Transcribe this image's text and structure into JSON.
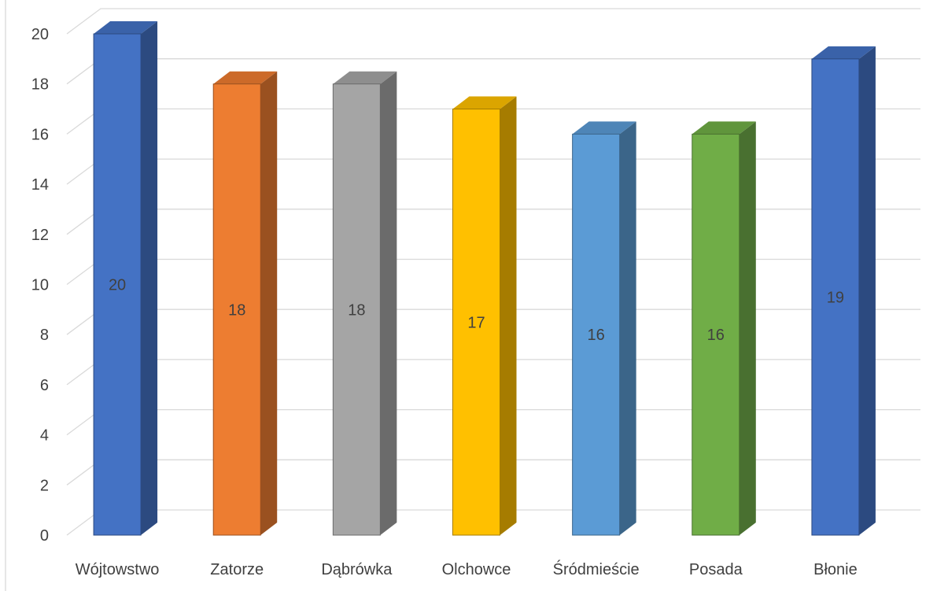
{
  "chart_data": {
    "type": "bar",
    "style": "3d-column",
    "title": "",
    "xlabel": "",
    "ylabel": "",
    "categories": [
      "Wójtowstwo",
      "Zatorze",
      "Dąbrówka",
      "Olchowce",
      "Śródmieście",
      "Posada",
      "Błonie"
    ],
    "values": [
      20,
      18,
      18,
      17,
      16,
      16,
      19
    ],
    "data_labels": [
      "20",
      "18",
      "18",
      "17",
      "16",
      "16",
      "19"
    ],
    "ylim": [
      0,
      20
    ],
    "y_ticks": [
      "0",
      "2",
      "4",
      "6",
      "8",
      "10",
      "12",
      "14",
      "16",
      "18",
      "20"
    ],
    "grid": true,
    "legend": "none",
    "colors": [
      "#4472c4",
      "#ed7d31",
      "#a5a5a5",
      "#ffc000",
      "#5b9bd5",
      "#70ad47",
      "#4472c4"
    ],
    "side_colors": [
      "#2c4a80",
      "#9a5120",
      "#6b6b6b",
      "#a67c00",
      "#3b6589",
      "#497030",
      "#2c4a80"
    ],
    "top_colors": [
      "#3a62a9",
      "#cc6a29",
      "#8e8e8e",
      "#dba500",
      "#4e85b7",
      "#60953c",
      "#3a62a9"
    ]
  }
}
